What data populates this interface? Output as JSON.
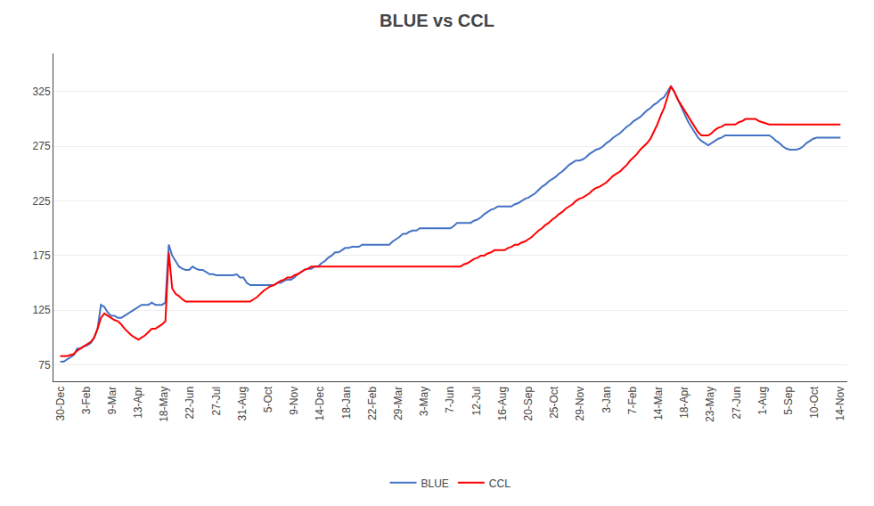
{
  "chart_data": {
    "type": "line",
    "title": "BLUE vs CCL",
    "x": [
      0,
      1,
      2,
      3,
      4,
      5,
      6,
      7,
      8,
      9,
      10,
      11,
      12,
      13,
      14,
      15,
      16,
      17,
      18,
      19,
      20,
      21,
      22,
      23,
      24,
      25,
      26,
      27,
      28,
      29,
      30,
      31,
      32,
      33,
      34,
      35,
      36,
      37,
      38,
      39,
      40,
      41,
      42,
      43,
      44,
      45,
      46,
      47,
      48,
      49,
      50,
      51,
      52,
      53,
      54,
      55,
      56,
      57,
      58,
      59,
      60,
      61,
      62,
      63,
      64,
      65,
      66,
      67,
      68,
      69,
      70,
      71,
      72,
      73,
      74,
      75,
      76,
      77,
      78,
      79,
      80,
      81,
      82,
      83,
      84,
      85,
      86,
      87,
      88,
      89,
      90,
      91,
      92,
      93,
      94,
      95,
      96,
      97,
      98,
      99,
      100,
      101,
      102,
      103,
      104,
      105,
      106,
      107,
      108,
      109,
      110,
      111,
      112,
      113,
      114,
      115,
      116,
      117,
      118,
      119,
      120,
      121,
      122,
      123,
      124,
      125,
      126,
      127,
      128,
      129,
      130,
      131,
      132,
      133,
      134,
      135,
      136,
      137,
      138,
      139,
      140,
      141,
      142,
      143,
      144,
      145,
      146,
      147,
      148,
      149,
      150,
      151,
      152,
      153,
      154,
      155,
      156,
      157,
      158,
      159,
      160,
      161,
      162,
      163,
      164,
      165,
      166,
      167,
      168,
      169,
      170,
      171,
      172,
      173,
      174,
      175,
      176,
      177,
      178,
      179,
      180,
      181,
      182,
      183,
      184,
      185,
      186,
      187,
      188,
      189,
      190,
      191,
      192,
      193,
      194,
      195,
      196,
      197,
      198,
      199,
      200,
      201,
      202,
      203,
      204,
      205,
      206,
      207,
      208,
      209,
      210,
      211,
      212,
      213,
      214,
      215,
      216,
      217,
      218,
      219,
      220,
      221,
      222,
      223,
      224,
      225,
      226,
      227,
      228,
      229,
      230
    ],
    "series": [
      {
        "name": "BLUE",
        "color": "#4472C4",
        "values": [
          78,
          78,
          80,
          82,
          84,
          90,
          90,
          92,
          93,
          95,
          100,
          108,
          130,
          128,
          123,
          120,
          120,
          118,
          118,
          120,
          122,
          124,
          126,
          128,
          130,
          130,
          130,
          132,
          130,
          130,
          130,
          132,
          185,
          175,
          170,
          165,
          163,
          162,
          162,
          165,
          163,
          162,
          162,
          160,
          158,
          158,
          157,
          157,
          157,
          157,
          157,
          157,
          158,
          155,
          155,
          150,
          148,
          148,
          148,
          148,
          148,
          148,
          148,
          148,
          150,
          150,
          152,
          153,
          153,
          155,
          158,
          160,
          162,
          163,
          163,
          165,
          165,
          168,
          170,
          173,
          175,
          178,
          178,
          180,
          182,
          182,
          183,
          183,
          183,
          185,
          185,
          185,
          185,
          185,
          185,
          185,
          185,
          185,
          188,
          190,
          192,
          195,
          195,
          197,
          198,
          198,
          200,
          200,
          200,
          200,
          200,
          200,
          200,
          200,
          200,
          200,
          202,
          205,
          205,
          205,
          205,
          205,
          207,
          208,
          210,
          213,
          215,
          217,
          218,
          220,
          220,
          220,
          220,
          220,
          222,
          223,
          225,
          227,
          228,
          230,
          232,
          235,
          238,
          240,
          243,
          245,
          247,
          250,
          252,
          255,
          258,
          260,
          262,
          262,
          263,
          265,
          268,
          270,
          272,
          273,
          275,
          278,
          280,
          283,
          285,
          287,
          290,
          293,
          295,
          298,
          300,
          302,
          305,
          308,
          310,
          313,
          315,
          318,
          320,
          325,
          330,
          325,
          318,
          312,
          305,
          298,
          293,
          288,
          283,
          280,
          278,
          276,
          278,
          280,
          282,
          283,
          285,
          285,
          285,
          285,
          285,
          285,
          285,
          285,
          285,
          285,
          285,
          285,
          285,
          285,
          283,
          280,
          278,
          275,
          273,
          272,
          272,
          272,
          273,
          275,
          278,
          280,
          282,
          283,
          283,
          283,
          283,
          283,
          283,
          283,
          283
        ]
      },
      {
        "name": "CCL",
        "color": "#FF0000",
        "values": [
          83,
          83,
          83,
          84,
          85,
          88,
          90,
          92,
          94,
          96,
          100,
          108,
          118,
          122,
          120,
          118,
          116,
          115,
          112,
          108,
          105,
          102,
          100,
          98,
          100,
          102,
          105,
          108,
          108,
          110,
          112,
          115,
          178,
          145,
          140,
          138,
          135,
          133,
          133,
          133,
          133,
          133,
          133,
          133,
          133,
          133,
          133,
          133,
          133,
          133,
          133,
          133,
          133,
          133,
          133,
          133,
          133,
          135,
          137,
          140,
          143,
          145,
          147,
          148,
          150,
          152,
          153,
          155,
          155,
          157,
          158,
          160,
          162,
          163,
          165,
          165,
          165,
          165,
          165,
          165,
          165,
          165,
          165,
          165,
          165,
          165,
          165,
          165,
          165,
          165,
          165,
          165,
          165,
          165,
          165,
          165,
          165,
          165,
          165,
          165,
          165,
          165,
          165,
          165,
          165,
          165,
          165,
          165,
          165,
          165,
          165,
          165,
          165,
          165,
          165,
          165,
          165,
          165,
          165,
          167,
          168,
          170,
          172,
          173,
          175,
          175,
          177,
          178,
          180,
          180,
          180,
          180,
          182,
          183,
          185,
          185,
          187,
          188,
          190,
          192,
          195,
          198,
          200,
          203,
          205,
          208,
          210,
          213,
          215,
          218,
          220,
          222,
          225,
          227,
          228,
          230,
          232,
          235,
          237,
          238,
          240,
          242,
          245,
          248,
          250,
          252,
          255,
          258,
          262,
          265,
          268,
          272,
          275,
          278,
          282,
          288,
          295,
          303,
          310,
          320,
          330,
          325,
          318,
          313,
          308,
          302,
          297,
          292,
          288,
          285,
          285,
          285,
          287,
          290,
          292,
          293,
          295,
          295,
          295,
          295,
          297,
          298,
          300,
          300,
          300,
          300,
          298,
          297,
          296,
          295,
          295,
          295,
          295,
          295,
          295,
          295,
          295,
          295,
          295,
          295,
          295,
          295,
          295,
          295,
          295,
          295,
          295,
          295,
          295,
          295,
          295
        ]
      }
    ],
    "xlim": [
      -2,
      232
    ],
    "xticks": [
      {
        "value": 0,
        "label": "30-Dec"
      },
      {
        "value": 7.666666666666667,
        "label": "3-Feb"
      },
      {
        "value": 15.333333333333334,
        "label": "9-Mar"
      },
      {
        "value": 23,
        "label": "13-Apr"
      },
      {
        "value": 30.666666666666668,
        "label": "18-May"
      },
      {
        "value": 38.333333333333336,
        "label": "22-Jun"
      },
      {
        "value": 46,
        "label": "27-Jul"
      },
      {
        "value": 53.666666666666664,
        "label": "31-Aug"
      },
      {
        "value": 61.333333333333336,
        "label": "5-Oct"
      },
      {
        "value": 69,
        "label": "9-Nov"
      },
      {
        "value": 76.66666666666667,
        "label": "14-Dec"
      },
      {
        "value": 84.33333333333333,
        "label": "18-Jan"
      },
      {
        "value": 92,
        "label": "22-Feb"
      },
      {
        "value": 99.66666666666667,
        "label": "29-Mar"
      },
      {
        "value": 107.33333333333333,
        "label": "3-May"
      },
      {
        "value": 115,
        "label": "7-Jun"
      },
      {
        "value": 122.66666666666667,
        "label": "12-Jul"
      },
      {
        "value": 130.33333333333334,
        "label": "16-Aug"
      },
      {
        "value": 138,
        "label": "20-Sep"
      },
      {
        "value": 145.66666666666666,
        "label": "25-Oct"
      },
      {
        "value": 153.33333333333334,
        "label": "29-Nov"
      },
      {
        "value": 161,
        "label": "3-Jan"
      },
      {
        "value": 168.66666666666666,
        "label": "7-Feb"
      },
      {
        "value": 176.33333333333334,
        "label": "14-Mar"
      },
      {
        "value": 184,
        "label": "18-Apr"
      },
      {
        "value": 191.66666666666666,
        "label": "23-May"
      },
      {
        "value": 199.33333333333334,
        "label": "27-Jun"
      },
      {
        "value": 207,
        "label": "1-Aug"
      },
      {
        "value": 214.66666666666666,
        "label": "5-Sep"
      },
      {
        "value": 222.33333333333334,
        "label": "10-Oct"
      },
      {
        "value": 230,
        "label": "14-Nov"
      }
    ],
    "ylim": [
      60,
      360
    ],
    "yticks": [
      75,
      125,
      175,
      225,
      275,
      325
    ],
    "grid": "y",
    "legend": "bottom"
  }
}
